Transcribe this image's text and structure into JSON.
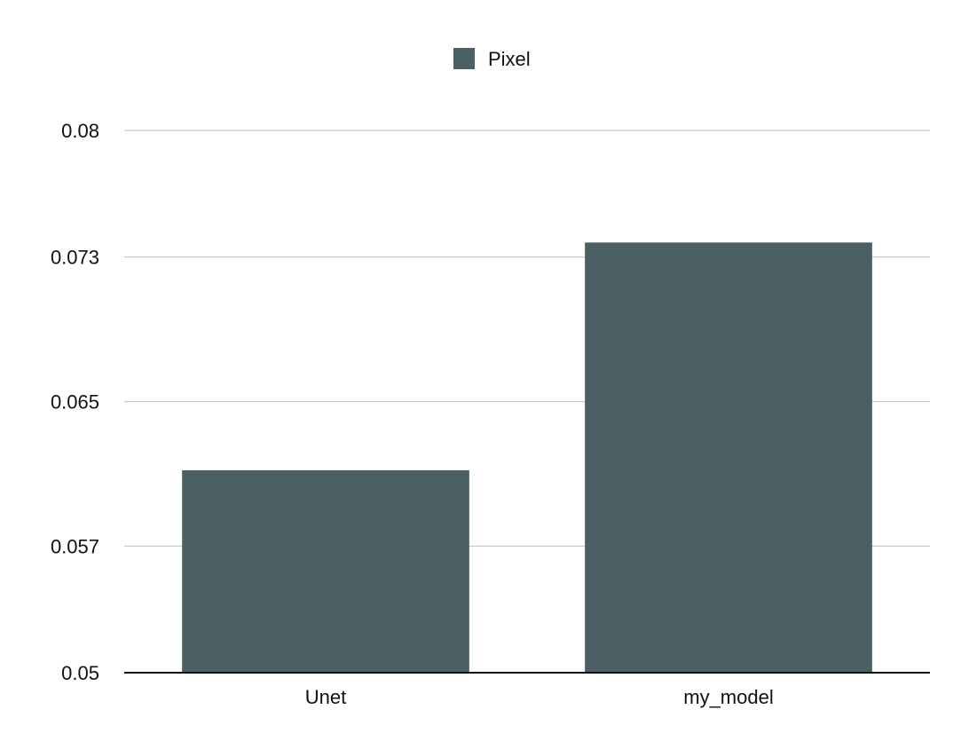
{
  "chart_data": {
    "type": "bar",
    "categories": [
      "Unet",
      "my_model"
    ],
    "series": [
      {
        "name": "Pixel",
        "values": [
          0.0612,
          0.0738
        ],
        "color": "#4c6063"
      }
    ],
    "ylim": [
      0.05,
      0.08
    ],
    "yticks": [
      0.05,
      0.057,
      0.065,
      0.073,
      0.08
    ],
    "ytick_labels": [
      "0.05",
      "0.057",
      "0.065",
      "0.073",
      "0.08"
    ],
    "grid": true,
    "legend_position": "top-center",
    "title": "",
    "xlabel": "",
    "ylabel": ""
  }
}
